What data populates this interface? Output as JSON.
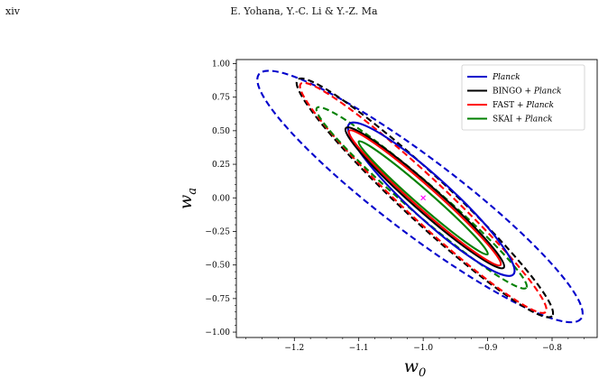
{
  "header": {
    "page_number": "xiv",
    "running_head": "E. Yohana, Y.-C. Li & Y.-Z. Ma"
  },
  "chart_data": {
    "type": "scatter",
    "xlabel": "w_0",
    "ylabel": "w_a",
    "xlim": [
      -1.29,
      -0.73
    ],
    "ylim": [
      -1.04,
      1.03
    ],
    "x_ticks": [
      -1.2,
      -1.1,
      -1.0,
      -0.9,
      -0.8
    ],
    "x_tick_labels": [
      "−1.2",
      "−1.1",
      "−1.0",
      "−0.9",
      "−0.8"
    ],
    "y_ticks": [
      1.0,
      0.75,
      0.5,
      0.25,
      0.0,
      -0.25,
      -0.5,
      -0.75,
      -1.0
    ],
    "y_tick_labels": [
      "1.00",
      "0.75",
      "0.50",
      "0.25",
      "0.00",
      "−0.25",
      "−0.50",
      "−0.75",
      "−1.00"
    ],
    "fiducial": {
      "x": -1.0,
      "y": 0.0,
      "marker": "x",
      "color": "#ff00ff"
    },
    "legend": {
      "position": "top-right",
      "entries": [
        {
          "prefix": "",
          "suffix": "Planck",
          "color": "#0000cc"
        },
        {
          "prefix": "BINGO + ",
          "suffix": "Planck",
          "color": "#000000"
        },
        {
          "prefix": "FAST + ",
          "suffix": "Planck",
          "color": "#ff0000"
        },
        {
          "prefix": "SKAI + ",
          "suffix": "Planck",
          "color": "#008000"
        }
      ]
    },
    "series": [
      {
        "name": "Planck",
        "color": "#0000cc",
        "contours": [
          {
            "level": "1-sigma",
            "style": "solid",
            "center": [
              -1.0,
              0.0
            ],
            "major_endpoints": [
              [
                -1.115,
                0.55
              ],
              [
                -0.86,
                -0.57
              ]
            ],
            "minor_half_width": 0.032
          },
          {
            "level": "2-sigma",
            "style": "dashed",
            "center": [
              -1.0,
              0.0
            ],
            "major_endpoints": [
              [
                -1.255,
                0.92
              ],
              [
                -0.755,
                -0.9
              ]
            ],
            "minor_half_width": 0.058
          }
        ]
      },
      {
        "name": "BINGO + Planck",
        "color": "#000000",
        "contours": [
          {
            "level": "1-sigma",
            "style": "solid",
            "center": [
              -1.0,
              0.0
            ],
            "major_endpoints": [
              [
                -1.12,
                0.52
              ],
              [
                -0.875,
                -0.52
              ]
            ],
            "minor_half_width": 0.02
          },
          {
            "level": "2-sigma",
            "style": "dashed",
            "center": [
              -1.0,
              0.0
            ],
            "major_endpoints": [
              [
                -1.195,
                0.88
              ],
              [
                -0.8,
                -0.88
              ]
            ],
            "minor_half_width": 0.036
          }
        ]
      },
      {
        "name": "FAST + Planck",
        "color": "#ff0000",
        "contours": [
          {
            "level": "1-sigma",
            "style": "solid",
            "center": [
              -1.0,
              0.0
            ],
            "major_endpoints": [
              [
                -1.115,
                0.5
              ],
              [
                -0.88,
                -0.5
              ]
            ],
            "minor_half_width": 0.017
          },
          {
            "level": "2-sigma",
            "style": "dashed",
            "center": [
              -1.0,
              0.0
            ],
            "major_endpoints": [
              [
                -1.19,
                0.85
              ],
              [
                -0.81,
                -0.85
              ]
            ],
            "minor_half_width": 0.032
          }
        ]
      },
      {
        "name": "SKAI + Planck",
        "color": "#008000",
        "contours": [
          {
            "level": "1-sigma",
            "style": "solid",
            "center": [
              -1.0,
              0.0
            ],
            "major_endpoints": [
              [
                -1.1,
                0.42
              ],
              [
                -0.9,
                -0.42
              ]
            ],
            "minor_half_width": 0.012
          },
          {
            "level": "2-sigma",
            "style": "dashed",
            "center": [
              -1.0,
              0.0
            ],
            "major_endpoints": [
              [
                -1.165,
                0.67
              ],
              [
                -0.84,
                -0.67
              ]
            ],
            "minor_half_width": 0.024
          }
        ]
      }
    ]
  }
}
